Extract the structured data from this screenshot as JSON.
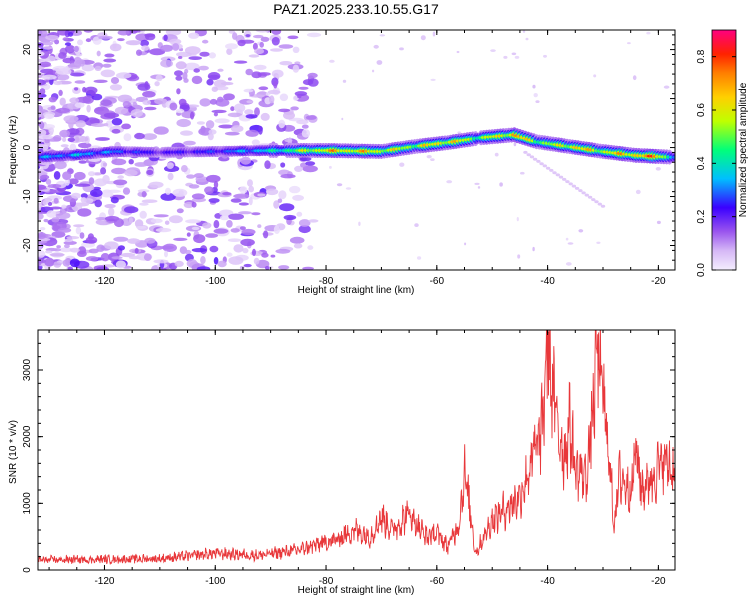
{
  "title": "PAZ1.2025.233.10.55.G17",
  "chart_data": [
    {
      "type": "heatmap",
      "title": "PAZ1.2025.233.10.55.G17",
      "xlabel": "Height of straight line (km)",
      "ylabel": "Frequency (Hz)",
      "xlim": [
        -132,
        -17
      ],
      "ylim": [
        -25,
        24
      ],
      "xticks": [
        -120,
        -100,
        -80,
        -60,
        -40,
        -20
      ],
      "yticks": [
        -20,
        -10,
        0,
        10,
        20
      ],
      "colorbar": {
        "label": "Normalized spectral amplitude",
        "range": [
          0,
          0.9
        ],
        "ticks": [
          0.0,
          0.2,
          0.4,
          0.6,
          0.8
        ],
        "colors": [
          "#f4eefe",
          "#d6b8f6",
          "#9a55ee",
          "#3a00ff",
          "#00bfff",
          "#00ff7a",
          "#bfff00",
          "#ffd000",
          "#ff7f00",
          "#ff2200",
          "#ff0080"
        ]
      },
      "ridge_center_hz": [
        [
          -132,
          -2
        ],
        [
          -125,
          -1.5
        ],
        [
          -118,
          -0.8
        ],
        [
          -110,
          -1
        ],
        [
          -100,
          -0.8
        ],
        [
          -90,
          -0.6
        ],
        [
          -80,
          -0.6
        ],
        [
          -70,
          -0.8
        ],
        [
          -64,
          0.2
        ],
        [
          -58,
          1.0
        ],
        [
          -52,
          2.0
        ],
        [
          -46,
          2.6
        ],
        [
          -42,
          1.2
        ],
        [
          -36,
          0.2
        ],
        [
          -30,
          -0.8
        ],
        [
          -24,
          -1.6
        ],
        [
          -17,
          -2.0
        ]
      ],
      "ridge_amplitude": [
        [
          -132,
          0.35
        ],
        [
          -125,
          0.4
        ],
        [
          -118,
          0.35
        ],
        [
          -110,
          0.25
        ],
        [
          -100,
          0.3
        ],
        [
          -90,
          0.45
        ],
        [
          -80,
          0.78
        ],
        [
          -72,
          0.75
        ],
        [
          -65,
          0.65
        ],
        [
          -58,
          0.78
        ],
        [
          -52,
          0.6
        ],
        [
          -46,
          0.82
        ],
        [
          -40,
          0.6
        ],
        [
          -35,
          0.78
        ],
        [
          -30,
          0.7
        ],
        [
          -25,
          0.8
        ],
        [
          -20,
          0.85
        ],
        [
          -17,
          0.4
        ]
      ],
      "secondary_line": [
        [
          -44,
          -1
        ],
        [
          -30,
          -12
        ]
      ]
    },
    {
      "type": "line",
      "xlabel": "Height of straight line (km)",
      "ylabel": "SNR (10 * v/v)",
      "xlim": [
        -132,
        -17
      ],
      "ylim": [
        0,
        3600
      ],
      "xticks": [
        -120,
        -100,
        -80,
        -60,
        -40,
        -20
      ],
      "yticks": [
        0,
        1000,
        2000,
        3000
      ],
      "series": [
        {
          "name": "SNR",
          "color": "#e8373a",
          "x": [
            -132,
            -120,
            -110,
            -100,
            -92,
            -85,
            -80,
            -78,
            -75,
            -72,
            -70,
            -68,
            -65,
            -62,
            -60,
            -58,
            -56,
            -55,
            -54,
            -53,
            -50,
            -47,
            -45,
            -43,
            -41,
            -40,
            -39,
            -38,
            -37,
            -36,
            -35,
            -33,
            -32,
            -31,
            -30,
            -29,
            -28,
            -27,
            -25,
            -24,
            -23,
            -21,
            -19,
            -17
          ],
          "y": [
            150,
            160,
            170,
            250,
            220,
            300,
            420,
            450,
            600,
            500,
            800,
            600,
            850,
            500,
            550,
            350,
            700,
            1450,
            900,
            250,
            750,
            950,
            1100,
            1600,
            2100,
            3500,
            2600,
            2100,
            1700,
            2200,
            1500,
            1400,
            2200,
            3350,
            2600,
            1800,
            700,
            1400,
            1200,
            1800,
            1200,
            1400,
            1650,
            1450
          ]
        }
      ]
    }
  ]
}
